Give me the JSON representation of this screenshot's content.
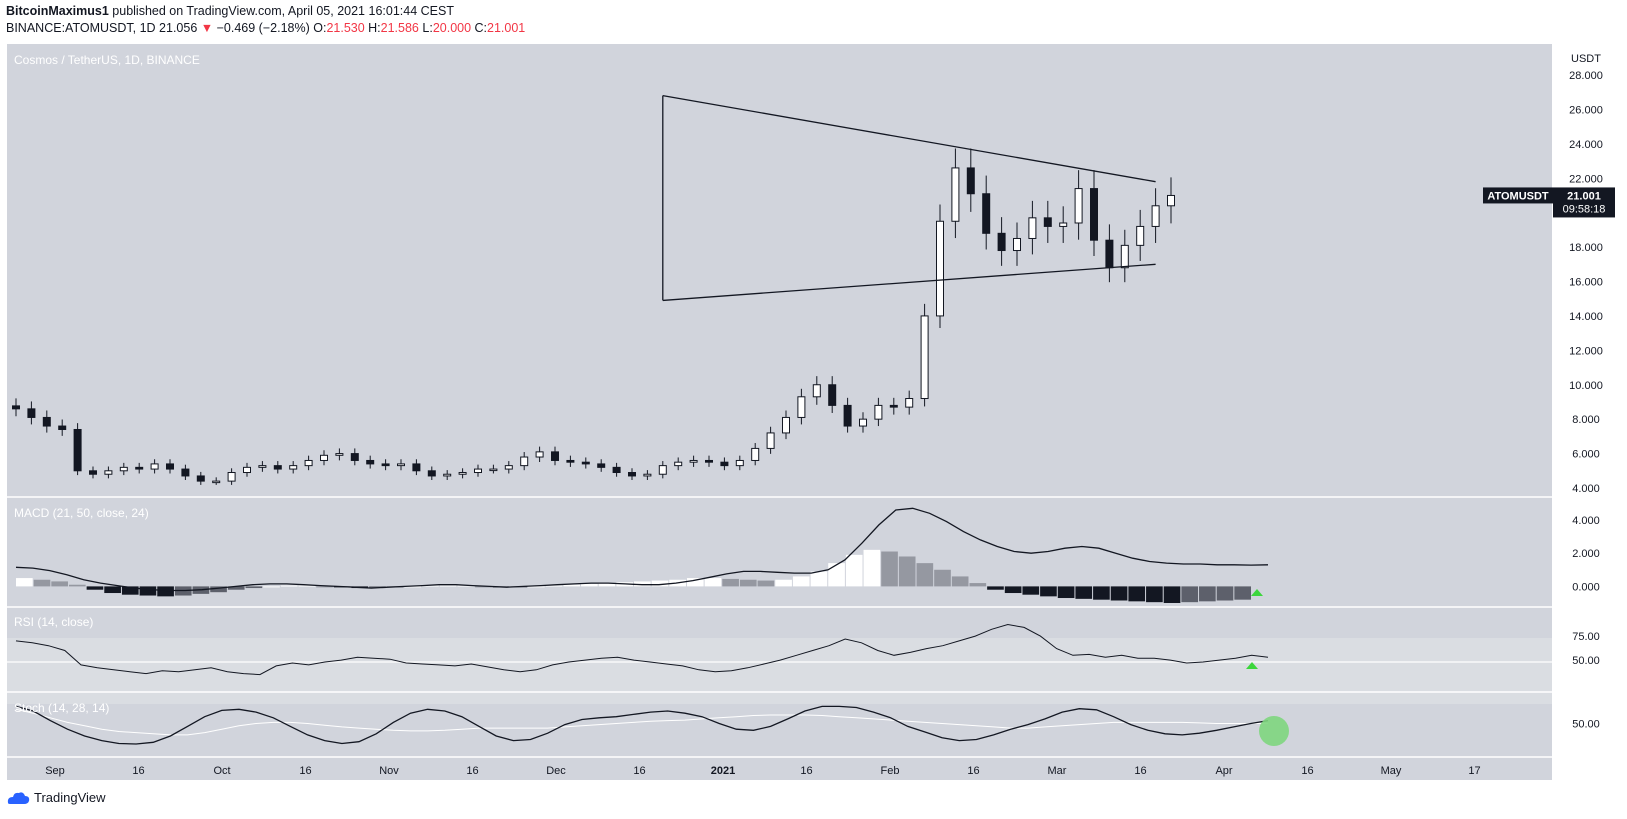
{
  "header": {
    "author": "BitcoinMaximus1",
    "published": "published on TradingView.com, April 05, 2021 16:01:44 CEST",
    "symbol": "BINANCE:ATOMUSDT, 1D",
    "last": "21.056",
    "change": "−0.469 (−2.18%)",
    "o_label": "O:",
    "o": "21.530",
    "h_label": "H:",
    "h": "21.586",
    "l_label": "L:",
    "l": "20.000",
    "c_label": "C:",
    "c": "21.001"
  },
  "colors": {
    "panel": "#d1d4dc",
    "candle": "#131722",
    "negative": "#f23645",
    "marker": "#3cd63c"
  },
  "footer": {
    "brand": "TradingView"
  },
  "chart_data": [
    {
      "type": "candlestick",
      "title": "Cosmos / TetherUS, 1D, BINANCE",
      "currency_label": "USDT",
      "y_ticks": [
        "28.000",
        "26.000",
        "24.000",
        "22.000",
        "20.000",
        "18.000",
        "16.000",
        "14.000",
        "12.000",
        "10.000",
        "8.000",
        "6.000",
        "4.000"
      ],
      "ylim": [
        4,
        28
      ],
      "x_ticks": [
        "Sep",
        "16",
        "Oct",
        "16",
        "Nov",
        "16",
        "Dec",
        "16",
        "2021",
        "16",
        "Feb",
        "16",
        "Mar",
        "16",
        "Apr",
        "16",
        "May",
        "17"
      ],
      "price_label": {
        "symbol": "ATOMUSDT",
        "price": "21.001",
        "countdown": "09:58:18",
        "value": 21.001
      },
      "trendlines": [
        {
          "name": "triangle-upper",
          "from": [
            42,
            26.8
          ],
          "to": [
            74,
            21.8
          ]
        },
        {
          "name": "triangle-lower",
          "from": [
            42,
            14.9
          ],
          "to": [
            74,
            17.0
          ]
        },
        {
          "name": "feb-low-wick",
          "from": [
            42,
            26.8
          ],
          "to": [
            42,
            14.9
          ]
        }
      ],
      "close_approx": [
        8.6,
        8.1,
        7.6,
        7.4,
        5.0,
        4.8,
        5.0,
        5.2,
        5.1,
        5.4,
        5.1,
        4.7,
        4.4,
        4.4,
        4.9,
        5.2,
        5.3,
        5.1,
        5.3,
        5.6,
        5.9,
        6.0,
        5.6,
        5.4,
        5.3,
        5.4,
        5.0,
        4.7,
        4.8,
        4.9,
        5.1,
        5.1,
        5.3,
        5.8,
        6.1,
        5.6,
        5.5,
        5.4,
        5.2,
        4.9,
        4.7,
        4.8,
        5.3,
        5.5,
        5.6,
        5.5,
        5.3,
        5.6,
        6.3,
        7.2,
        8.1,
        9.3,
        10.0,
        8.8,
        7.6,
        8.0,
        8.8,
        8.7,
        9.2,
        14.0,
        19.5,
        22.6,
        21.1,
        18.8,
        17.8,
        18.5,
        19.7,
        19.2,
        19.4,
        21.4,
        18.4,
        16.8,
        18.1,
        19.2,
        20.4,
        21.0
      ]
    },
    {
      "type": "line",
      "title": "MACD (21, 50, close, 24)",
      "y_ticks": [
        "4.000",
        "2.000",
        "0.000"
      ],
      "ylim": [
        -1,
        4.9
      ],
      "macd": [
        1.15,
        1.1,
        0.95,
        0.7,
        0.4,
        0.2,
        0.05,
        -0.1,
        -0.2,
        -0.25,
        -0.25,
        -0.2,
        -0.1,
        0.0,
        0.1,
        0.15,
        0.15,
        0.1,
        0.05,
        0.0,
        -0.05,
        -0.1,
        -0.05,
        0.0,
        0.05,
        0.1,
        0.1,
        0.05,
        0.0,
        -0.05,
        0.0,
        0.05,
        0.1,
        0.15,
        0.2,
        0.2,
        0.15,
        0.1,
        0.1,
        0.2,
        0.35,
        0.55,
        0.75,
        0.9,
        0.9,
        0.85,
        0.8,
        0.8,
        1.0,
        1.6,
        2.6,
        3.7,
        4.6,
        4.7,
        4.4,
        3.9,
        3.3,
        2.8,
        2.4,
        2.1,
        2.0,
        2.1,
        2.3,
        2.4,
        2.3,
        2.0,
        1.7,
        1.5,
        1.4,
        1.35,
        1.35,
        1.3,
        1.3,
        1.28,
        1.3
      ],
      "hist": [
        0.5,
        0.4,
        0.3,
        0.1,
        -0.2,
        -0.4,
        -0.5,
        -0.55,
        -0.6,
        -0.55,
        -0.45,
        -0.35,
        -0.2,
        -0.1,
        0.0,
        0.05,
        0.05,
        0.0,
        -0.05,
        -0.1,
        -0.1,
        -0.05,
        0.0,
        0.05,
        0.05,
        0.05,
        0.0,
        -0.05,
        -0.05,
        0.0,
        0.05,
        0.1,
        0.15,
        0.2,
        0.25,
        0.3,
        0.35,
        0.4,
        0.5,
        0.5,
        0.45,
        0.4,
        0.35,
        0.4,
        0.6,
        0.9,
        1.4,
        1.9,
        2.2,
        2.1,
        1.8,
        1.4,
        1.0,
        0.6,
        0.2,
        -0.2,
        -0.4,
        -0.5,
        -0.6,
        -0.7,
        -0.75,
        -0.8,
        -0.85,
        -0.9,
        -0.95,
        -1.0,
        -0.95,
        -0.9,
        -0.85,
        -0.8
      ]
    },
    {
      "type": "line",
      "title": "RSI (14, close)",
      "y_ticks": [
        "75.00",
        "50.00"
      ],
      "ylim": [
        20,
        100
      ],
      "band": [
        30,
        70
      ],
      "values": [
        70,
        68,
        65,
        60,
        45,
        42,
        40,
        38,
        36,
        39,
        38,
        40,
        42,
        38,
        36,
        35,
        44,
        47,
        45,
        48,
        50,
        53,
        52,
        51,
        47,
        46,
        45,
        44,
        46,
        43,
        40,
        38,
        40,
        45,
        48,
        50,
        52,
        53,
        50,
        48,
        46,
        44,
        40,
        38,
        39,
        42,
        46,
        50,
        55,
        60,
        65,
        72,
        68,
        60,
        55,
        58,
        62,
        65,
        70,
        75,
        82,
        87,
        84,
        75,
        62,
        55,
        56,
        53,
        55,
        52,
        52,
        50,
        47,
        48,
        50,
        52,
        55,
        53
      ]
    },
    {
      "type": "line",
      "title": "Stoch (14, 28, 14)",
      "y_ticks": [
        "50.00"
      ],
      "ylim": [
        0,
        100
      ],
      "k": [
        80,
        72,
        55,
        40,
        28,
        20,
        15,
        14,
        17,
        28,
        45,
        62,
        73,
        75,
        70,
        60,
        45,
        30,
        20,
        15,
        18,
        32,
        52,
        68,
        75,
        72,
        62,
        45,
        28,
        20,
        22,
        33,
        48,
        57,
        60,
        62,
        66,
        70,
        72,
        68,
        62,
        50,
        40,
        38,
        45,
        58,
        72,
        80,
        80,
        78,
        70,
        60,
        45,
        35,
        25,
        20,
        22,
        30,
        40,
        48,
        58,
        70,
        76,
        74,
        62,
        48,
        38,
        32,
        30,
        33,
        38,
        44,
        50,
        55
      ],
      "d": [
        75,
        68,
        60,
        52,
        46,
        40,
        36,
        34,
        32,
        30,
        30,
        34,
        40,
        46,
        50,
        52,
        52,
        50,
        47,
        44,
        42,
        40,
        38,
        37,
        37,
        38,
        40,
        42,
        42,
        42,
        42,
        42,
        44,
        46,
        48,
        50,
        52,
        54,
        55,
        56,
        58,
        60,
        62,
        64,
        65,
        65,
        65,
        64,
        62,
        60,
        58,
        56,
        54,
        52,
        50,
        48,
        46,
        44,
        42,
        42,
        44,
        46,
        48,
        50,
        52,
        52,
        52,
        52,
        52,
        51,
        50,
        50,
        50,
        50
      ]
    }
  ]
}
